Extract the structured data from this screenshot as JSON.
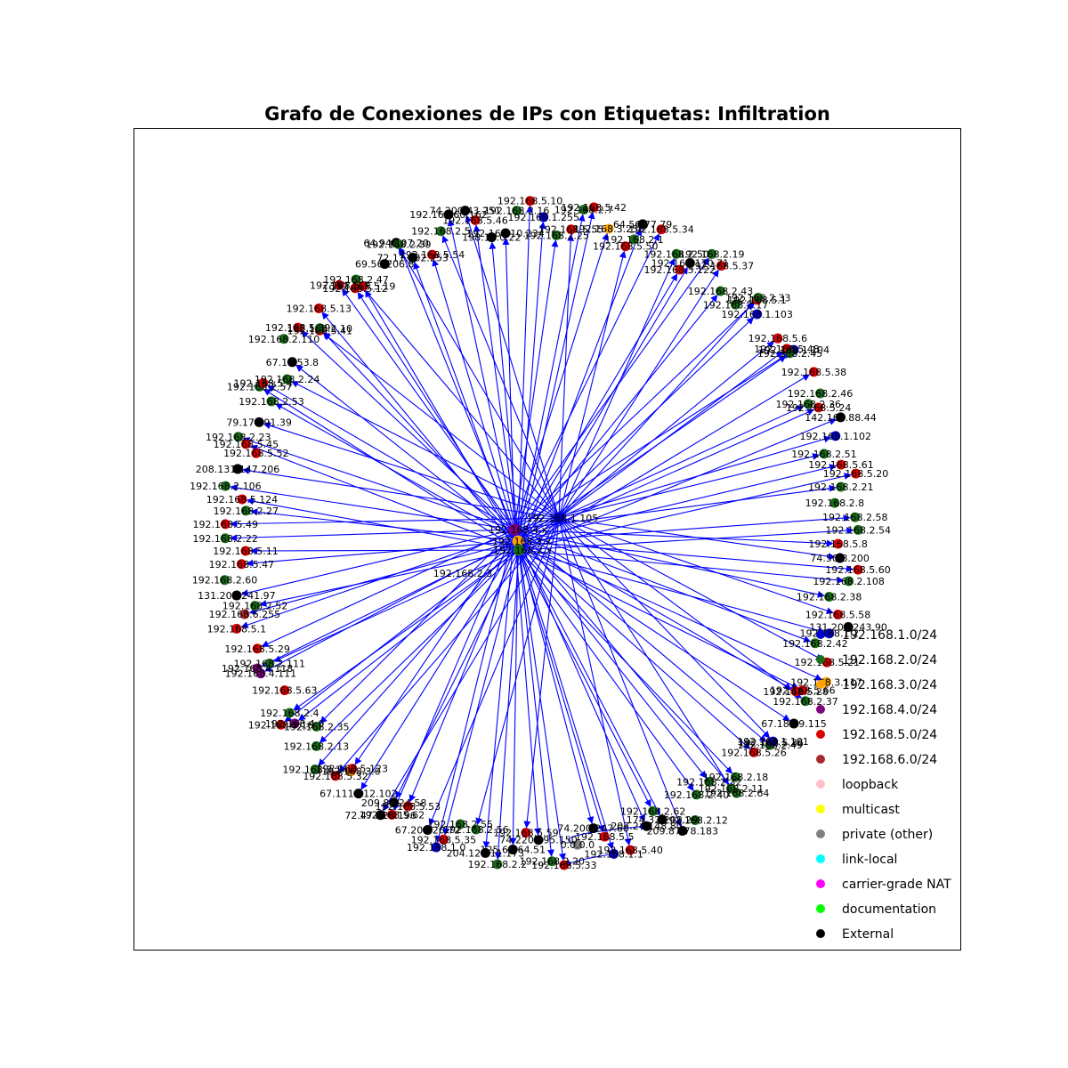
{
  "title": "Grafo de Conexiones de IPs con Etiquetas: Infiltration",
  "colors": {
    "192.168.1.0/24": "#0000cc",
    "192.168.2.0/24": "#1a6b1a",
    "192.168.3.0/24": "#ffa500",
    "192.168.4.0/24": "#800080",
    "192.168.5.0/24": "#dd0000",
    "192.168.6.0/24": "#a52a2a",
    "loopback": "#ffc0cb",
    "multicast": "#ffff00",
    "private (other)": "#808080",
    "link-local": "#00ffff",
    "carrier-grade NAT": "#ff00ff",
    "documentation": "#00ff00",
    "External": "#000000",
    "edge": "#0000ff"
  },
  "legend": [
    "192.168.1.0/24",
    "192.168.2.0/24",
    "192.168.3.0/24",
    "192.168.4.0/24",
    "192.168.5.0/24",
    "192.168.6.0/24",
    "loopback",
    "multicast",
    "private (other)",
    "link-local",
    "carrier-grade NAT",
    "documentation",
    "External"
  ],
  "hubs": [
    "192.168.1.105",
    "192.168.3.x",
    "192.168.2.x",
    "192.168.4.x"
  ],
  "nodes": [
    {
      "label": "74.200.43.251",
      "group": "External"
    },
    {
      "label": "192.168.5.46",
      "group": "192.168.5.0/24"
    },
    {
      "label": "198.13.0.22",
      "group": "External"
    },
    {
      "label": "192.168.10.234",
      "group": "External"
    },
    {
      "label": "192.168.2.16",
      "group": "192.168.2.0/24"
    },
    {
      "label": "192.168.5.10",
      "group": "192.168.5.0/24"
    },
    {
      "label": "192.168.1.255",
      "group": "192.168.1.0/24"
    },
    {
      "label": "192.168.2.25",
      "group": "192.168.2.0/24"
    },
    {
      "label": "192.168.5.55",
      "group": "192.168.5.0/24"
    },
    {
      "label": "192.168.2.7",
      "group": "192.168.2.0/24"
    },
    {
      "label": "192.168.5.42",
      "group": "192.168.5.0/24"
    },
    {
      "label": "192.168.3.255",
      "group": "192.168.3.0/24"
    },
    {
      "label": "192.168.5.50",
      "group": "192.168.5.0/24"
    },
    {
      "label": "192.168.2.1",
      "group": "192.168.2.0/24"
    },
    {
      "label": "64.56.77.79",
      "group": "External"
    },
    {
      "label": "192.168.5.34",
      "group": "192.168.5.0/24"
    },
    {
      "label": "192.168.2.50",
      "group": "192.168.2.0/24"
    },
    {
      "label": "192.168.5.122",
      "group": "192.168.5.0/24"
    },
    {
      "label": "192.168.170.71",
      "group": "External"
    },
    {
      "label": "192.168.2.19",
      "group": "192.168.2.0/24"
    },
    {
      "label": "192.168.5.37",
      "group": "192.168.5.0/24"
    },
    {
      "label": "192.168.2.43",
      "group": "192.168.2.0/24"
    },
    {
      "label": "192.168.2.17",
      "group": "192.168.2.0/24"
    },
    {
      "label": "192.168.5.1",
      "group": "192.168.5.0/24"
    },
    {
      "label": "192.168.2.33",
      "group": "192.168.2.0/24"
    },
    {
      "label": "192.168.1.103",
      "group": "192.168.1.0/24"
    },
    {
      "label": "192.168.5.6",
      "group": "192.168.5.0/24"
    },
    {
      "label": "192.168.1.104",
      "group": "192.168.1.0/24"
    },
    {
      "label": "192.168.5.48",
      "group": "192.168.5.0/24"
    },
    {
      "label": "192.168.2.45",
      "group": "192.168.2.0/24"
    },
    {
      "label": "192.168.5.38",
      "group": "192.168.5.0/24"
    },
    {
      "label": "192.168.2.46",
      "group": "192.168.2.0/24"
    },
    {
      "label": "192.168.2.36",
      "group": "192.168.2.0/24"
    },
    {
      "label": "192.168.5.24",
      "group": "192.168.5.0/24"
    },
    {
      "label": "142.160.88.44",
      "group": "External"
    },
    {
      "label": "192.168.1.102",
      "group": "192.168.1.0/24"
    },
    {
      "label": "192.168.2.51",
      "group": "192.168.2.0/24"
    },
    {
      "label": "192.168.5.61",
      "group": "192.168.5.0/24"
    },
    {
      "label": "192.168.5.20",
      "group": "192.168.5.0/24"
    },
    {
      "label": "192.168.2.21",
      "group": "192.168.2.0/24"
    },
    {
      "label": "192.168.2.8",
      "group": "192.168.2.0/24"
    },
    {
      "label": "192.168.2.58",
      "group": "192.168.2.0/24"
    },
    {
      "label": "192.168.2.54",
      "group": "192.168.2.0/24"
    },
    {
      "label": "192.168.5.8",
      "group": "192.168.5.0/24"
    },
    {
      "label": "74.50.8.200",
      "group": "External"
    },
    {
      "label": "192.168.5.60",
      "group": "192.168.5.0/24"
    },
    {
      "label": "192.168.2.108",
      "group": "192.168.2.0/24"
    },
    {
      "label": "192.168.2.38",
      "group": "192.168.2.0/24"
    },
    {
      "label": "192.168.5.58",
      "group": "192.168.5.0/24"
    },
    {
      "label": "131.202.243.90",
      "group": "External"
    },
    {
      "label": "192.168.1.2",
      "group": "192.168.1.0/24"
    },
    {
      "label": "192.168.2.42",
      "group": "192.168.2.0/24"
    },
    {
      "label": "192.168.5.21",
      "group": "192.168.5.0/24"
    },
    {
      "label": "192.168.3.117",
      "group": "192.168.3.0/24"
    },
    {
      "label": "192.168.5.66",
      "group": "192.168.5.0/24"
    },
    {
      "label": "192.168.5.28",
      "group": "192.168.5.0/24"
    },
    {
      "label": "192.168.2.37",
      "group": "192.168.2.0/24"
    },
    {
      "label": "67.18.99.115",
      "group": "External"
    },
    {
      "label": "192.168.5.36",
      "group": "192.168.5.0/24"
    },
    {
      "label": "192.168.2.49",
      "group": "192.168.2.0/24"
    },
    {
      "label": "192.168.1.101",
      "group": "192.168.1.0/24"
    },
    {
      "label": "192.168.5.26",
      "group": "192.168.5.0/24"
    },
    {
      "label": "192.168.2.18",
      "group": "192.168.2.0/24"
    },
    {
      "label": "192.168.2.64",
      "group": "192.168.2.0/24"
    },
    {
      "label": "192.168.2.11",
      "group": "192.168.2.0/24"
    },
    {
      "label": "192.168.2.32",
      "group": "192.168.2.0/24"
    },
    {
      "label": "192.168.2.40",
      "group": "192.168.2.0/24"
    },
    {
      "label": "192.168.2.12",
      "group": "192.168.2.0/24"
    },
    {
      "label": "209.87.78.183",
      "group": "External"
    },
    {
      "label": "174.32.208.29",
      "group": "External"
    },
    {
      "label": "192.168.2.62",
      "group": "192.168.2.0/24"
    },
    {
      "label": "207.24.148.80",
      "group": "External"
    },
    {
      "label": "192.168.5.40",
      "group": "192.168.5.0/24"
    },
    {
      "label": "192.168.1.1",
      "group": "192.168.1.0/24"
    },
    {
      "label": "192.168.5.5",
      "group": "192.168.5.0/24"
    },
    {
      "label": "74.200.247.60",
      "group": "External"
    },
    {
      "label": "0.0.0.0",
      "group": "private (other)"
    },
    {
      "label": "192.168.5.33",
      "group": "192.168.5.0/24"
    },
    {
      "label": "192.168.2.20",
      "group": "192.168.2.0/24"
    },
    {
      "label": "74.220.195.150",
      "group": "External"
    },
    {
      "label": "192.168.5.59",
      "group": "192.168.5.0/24"
    },
    {
      "label": "125.6.164.51",
      "group": "External"
    },
    {
      "label": "192.168.2.2",
      "group": "192.168.2.0/24"
    },
    {
      "label": "204.12.111.173",
      "group": "External"
    },
    {
      "label": "192.168.2.56",
      "group": "192.168.2.0/24"
    },
    {
      "label": "192.168.2.55",
      "group": "192.168.2.0/24"
    },
    {
      "label": "192.168.5.35",
      "group": "192.168.5.0/24"
    },
    {
      "label": "192.168.1.0",
      "group": "192.168.1.0/24"
    },
    {
      "label": "67.205.26.72",
      "group": "External"
    },
    {
      "label": "192.168.5.53",
      "group": "192.168.5.0/24"
    },
    {
      "label": "209.85.24.58",
      "group": "External"
    },
    {
      "label": "192.168.5.62",
      "group": "192.168.5.0/24"
    },
    {
      "label": "72.47.228.196",
      "group": "External"
    },
    {
      "label": "67.111.112.102",
      "group": "External"
    },
    {
      "label": "192.168.3.0",
      "group": "192.168.3.0/24"
    },
    {
      "label": "192.168.5.123",
      "group": "192.168.5.0/24"
    },
    {
      "label": "192.168.5.32",
      "group": "192.168.5.0/24"
    },
    {
      "label": "192.168.2.14",
      "group": "192.168.2.0/24"
    },
    {
      "label": "192.168.2.13",
      "group": "192.168.2.0/24"
    },
    {
      "label": "192.168.2.35",
      "group": "192.168.2.0/24"
    },
    {
      "label": "192.168.4.0",
      "group": "192.168.4.0/24"
    },
    {
      "label": "192.168.5.16",
      "group": "192.168.5.0/24"
    },
    {
      "label": "192.168.2.4",
      "group": "192.168.2.0/24"
    },
    {
      "label": "192.168.5.63",
      "group": "192.168.5.0/24"
    },
    {
      "label": "192.168.4.111",
      "group": "192.168.4.0/24"
    },
    {
      "label": "192.168.4.118",
      "group": "192.168.4.0/24"
    },
    {
      "label": "192.168.2.111",
      "group": "192.168.2.0/24"
    },
    {
      "label": "192.168.5.29",
      "group": "192.168.5.0/24"
    },
    {
      "label": "192.168.5.1",
      "group": "192.168.5.0/24"
    },
    {
      "label": "192.168.6.255",
      "group": "192.168.6.0/24"
    },
    {
      "label": "192.168.2.52",
      "group": "192.168.2.0/24"
    },
    {
      "label": "131.202.241.97",
      "group": "External"
    },
    {
      "label": "192.168.2.60",
      "group": "192.168.2.0/24"
    },
    {
      "label": "192.168.5.47",
      "group": "192.168.5.0/24"
    },
    {
      "label": "192.168.5.11",
      "group": "192.168.5.0/24"
    },
    {
      "label": "192.168.2.22",
      "group": "192.168.2.0/24"
    },
    {
      "label": "192.168.5.49",
      "group": "192.168.5.0/24"
    },
    {
      "label": "192.168.2.27",
      "group": "192.168.2.0/24"
    },
    {
      "label": "192.168.5.124",
      "group": "192.168.5.0/24"
    },
    {
      "label": "192.168.2.106",
      "group": "192.168.2.0/24"
    },
    {
      "label": "208.131.147.206",
      "group": "External"
    },
    {
      "label": "192.168.5.52",
      "group": "192.168.5.0/24"
    },
    {
      "label": "192.168.5.45",
      "group": "192.168.5.0/24"
    },
    {
      "label": "192.168.2.23",
      "group": "192.168.2.0/24"
    },
    {
      "label": "79.170.91.39",
      "group": "External"
    },
    {
      "label": "192.168.2.53",
      "group": "192.168.2.0/24"
    },
    {
      "label": "192.168.2.57",
      "group": "192.168.2.0/24"
    },
    {
      "label": "192.168.5.4",
      "group": "192.168.5.0/24"
    },
    {
      "label": "192.168.2.24",
      "group": "192.168.2.0/24"
    },
    {
      "label": "67.15.53.8",
      "group": "External"
    },
    {
      "label": "192.168.2.110",
      "group": "192.168.2.0/24"
    },
    {
      "label": "192.168.5.39",
      "group": "192.168.5.0/24"
    },
    {
      "label": "192.168.5.41",
      "group": "192.168.5.0/24"
    },
    {
      "label": "192.168.2.10",
      "group": "192.168.2.0/24"
    },
    {
      "label": "192.168.5.13",
      "group": "192.168.5.0/24"
    },
    {
      "label": "192.168.5.7",
      "group": "192.168.5.0/24"
    },
    {
      "label": "192.168.2.47",
      "group": "192.168.2.0/24"
    },
    {
      "label": "192.168.5.12",
      "group": "192.168.5.0/24"
    },
    {
      "label": "192.168.5.19",
      "group": "192.168.5.0/24"
    },
    {
      "label": "69.56.206.8",
      "group": "External"
    },
    {
      "label": "64.94.107.20",
      "group": "External"
    },
    {
      "label": "192.168.2.39",
      "group": "192.168.2.0/24"
    },
    {
      "label": "72.11.132.253",
      "group": "External"
    },
    {
      "label": "192.168.5.54",
      "group": "192.168.5.0/24"
    },
    {
      "label": "192.168.2.5",
      "group": "192.168.2.0/24"
    },
    {
      "label": "192.168.60.162",
      "group": "External"
    }
  ],
  "extra_labels": [
    "192.168.2.3"
  ],
  "side_edges": [
    [
      73,
      77
    ],
    [
      76,
      71
    ]
  ]
}
